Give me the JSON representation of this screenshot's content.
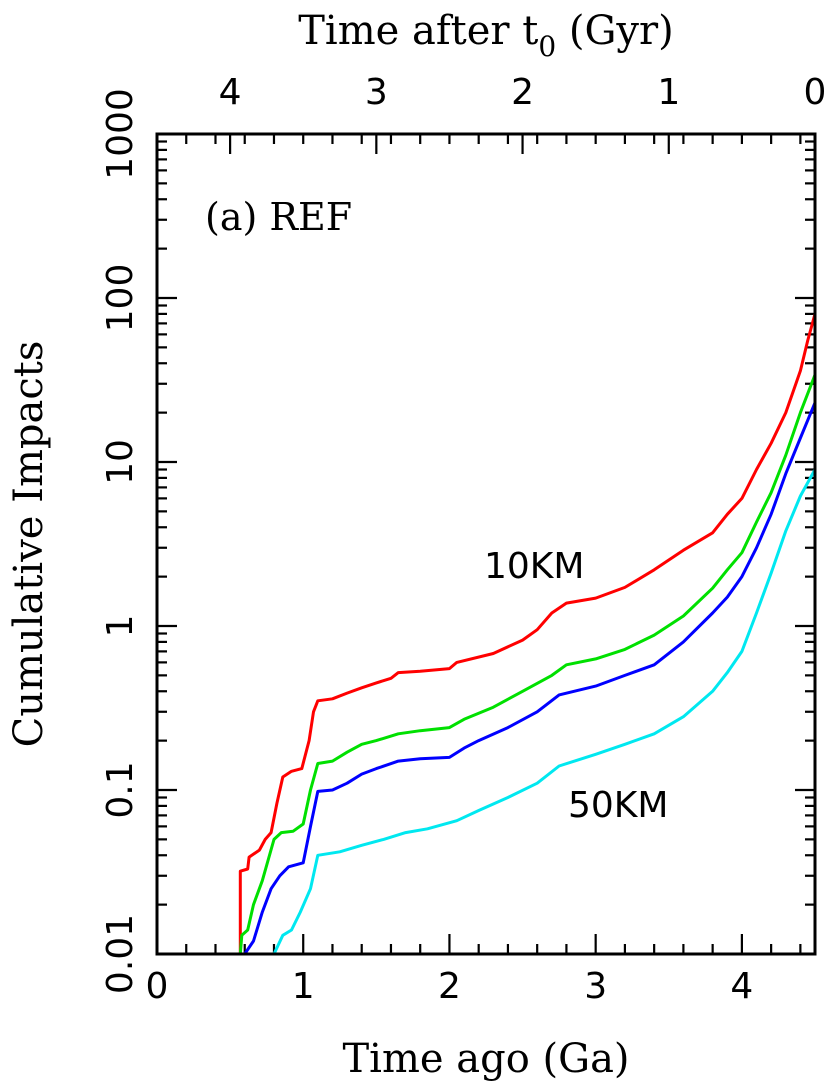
{
  "chart_data": {
    "type": "line",
    "top_axis_title": "Time after t",
    "top_axis_subscript": "0",
    "top_axis_unit": " (Gyr)",
    "top_ticks": [
      "4",
      "3",
      "2",
      "1",
      "0"
    ],
    "top_tick_values": [
      4,
      3,
      2,
      1,
      0
    ],
    "xlabel": "Time ago (Ga)",
    "ylabel": "Cumulative Impacts",
    "xlim": [
      0,
      4.5
    ],
    "ylim": [
      0.01,
      1000
    ],
    "yscale": "log",
    "x_ticks": [
      "0",
      "1",
      "2",
      "3",
      "4"
    ],
    "x_tick_values": [
      0,
      1,
      2,
      3,
      4
    ],
    "y_ticks": [
      "0.01",
      "0.1",
      "1",
      "10",
      "100",
      "1000"
    ],
    "y_tick_values": [
      0.01,
      0.1,
      1,
      10,
      100,
      1000
    ],
    "panel_label": "(a) REF",
    "annotations": [
      {
        "text": "10KM",
        "x": 2.25,
        "y": 2.6
      },
      {
        "text": "50KM",
        "x": 2.85,
        "y": 0.078
      }
    ],
    "series": [
      {
        "color": "#ff0000",
        "points": [
          [
            0.57,
            0.01
          ],
          [
            0.57,
            0.032
          ],
          [
            0.62,
            0.033
          ],
          [
            0.63,
            0.039
          ],
          [
            0.7,
            0.043
          ],
          [
            0.74,
            0.05
          ],
          [
            0.78,
            0.055
          ],
          [
            0.82,
            0.083
          ],
          [
            0.86,
            0.12
          ],
          [
            0.92,
            0.13
          ],
          [
            0.99,
            0.135
          ],
          [
            1.04,
            0.2
          ],
          [
            1.07,
            0.3
          ],
          [
            1.1,
            0.35
          ],
          [
            1.2,
            0.36
          ],
          [
            1.3,
            0.39
          ],
          [
            1.4,
            0.42
          ],
          [
            1.5,
            0.45
          ],
          [
            1.6,
            0.48
          ],
          [
            1.65,
            0.52
          ],
          [
            1.8,
            0.53
          ],
          [
            2.0,
            0.55
          ],
          [
            2.05,
            0.6
          ],
          [
            2.3,
            0.68
          ],
          [
            2.5,
            0.82
          ],
          [
            2.6,
            0.95
          ],
          [
            2.7,
            1.2
          ],
          [
            2.8,
            1.38
          ],
          [
            3.0,
            1.48
          ],
          [
            3.2,
            1.72
          ],
          [
            3.4,
            2.2
          ],
          [
            3.6,
            2.9
          ],
          [
            3.8,
            3.7
          ],
          [
            3.9,
            4.8
          ],
          [
            4.0,
            6.0
          ],
          [
            4.1,
            9.0
          ],
          [
            4.2,
            13
          ],
          [
            4.3,
            20
          ],
          [
            4.4,
            36
          ],
          [
            4.45,
            55
          ],
          [
            4.5,
            80
          ]
        ]
      },
      {
        "color": "#00e000",
        "points": [
          [
            0.57,
            0.01
          ],
          [
            0.58,
            0.013
          ],
          [
            0.62,
            0.014
          ],
          [
            0.66,
            0.02
          ],
          [
            0.72,
            0.028
          ],
          [
            0.8,
            0.05
          ],
          [
            0.85,
            0.055
          ],
          [
            0.93,
            0.056
          ],
          [
            1.0,
            0.062
          ],
          [
            1.05,
            0.1
          ],
          [
            1.1,
            0.145
          ],
          [
            1.2,
            0.15
          ],
          [
            1.3,
            0.17
          ],
          [
            1.4,
            0.19
          ],
          [
            1.5,
            0.2
          ],
          [
            1.65,
            0.22
          ],
          [
            1.8,
            0.23
          ],
          [
            2.0,
            0.24
          ],
          [
            2.1,
            0.27
          ],
          [
            2.3,
            0.32
          ],
          [
            2.5,
            0.4
          ],
          [
            2.7,
            0.5
          ],
          [
            2.8,
            0.58
          ],
          [
            3.0,
            0.63
          ],
          [
            3.2,
            0.72
          ],
          [
            3.4,
            0.88
          ],
          [
            3.6,
            1.15
          ],
          [
            3.8,
            1.7
          ],
          [
            3.9,
            2.2
          ],
          [
            4.0,
            2.8
          ],
          [
            4.1,
            4.3
          ],
          [
            4.2,
            6.5
          ],
          [
            4.3,
            11
          ],
          [
            4.4,
            20
          ],
          [
            4.5,
            34
          ]
        ]
      },
      {
        "color": "#0000ff",
        "points": [
          [
            0.6,
            0.01
          ],
          [
            0.66,
            0.012
          ],
          [
            0.72,
            0.018
          ],
          [
            0.78,
            0.025
          ],
          [
            0.84,
            0.03
          ],
          [
            0.9,
            0.034
          ],
          [
            1.0,
            0.036
          ],
          [
            1.05,
            0.06
          ],
          [
            1.1,
            0.098
          ],
          [
            1.2,
            0.1
          ],
          [
            1.3,
            0.11
          ],
          [
            1.4,
            0.125
          ],
          [
            1.5,
            0.135
          ],
          [
            1.65,
            0.15
          ],
          [
            1.8,
            0.155
          ],
          [
            2.0,
            0.158
          ],
          [
            2.1,
            0.18
          ],
          [
            2.2,
            0.2
          ],
          [
            2.4,
            0.24
          ],
          [
            2.6,
            0.3
          ],
          [
            2.75,
            0.38
          ],
          [
            3.0,
            0.43
          ],
          [
            3.2,
            0.5
          ],
          [
            3.4,
            0.58
          ],
          [
            3.6,
            0.8
          ],
          [
            3.8,
            1.2
          ],
          [
            3.9,
            1.5
          ],
          [
            4.0,
            2.0
          ],
          [
            4.1,
            3.0
          ],
          [
            4.2,
            4.8
          ],
          [
            4.3,
            8.5
          ],
          [
            4.4,
            14
          ],
          [
            4.5,
            23
          ]
        ]
      },
      {
        "color": "#00e8f0",
        "points": [
          [
            0.8,
            0.01
          ],
          [
            0.86,
            0.013
          ],
          [
            0.92,
            0.014
          ],
          [
            0.98,
            0.018
          ],
          [
            1.05,
            0.025
          ],
          [
            1.1,
            0.04
          ],
          [
            1.25,
            0.042
          ],
          [
            1.4,
            0.046
          ],
          [
            1.55,
            0.05
          ],
          [
            1.7,
            0.055
          ],
          [
            1.85,
            0.058
          ],
          [
            2.05,
            0.065
          ],
          [
            2.2,
            0.075
          ],
          [
            2.4,
            0.09
          ],
          [
            2.6,
            0.11
          ],
          [
            2.75,
            0.14
          ],
          [
            3.0,
            0.165
          ],
          [
            3.2,
            0.19
          ],
          [
            3.4,
            0.22
          ],
          [
            3.6,
            0.28
          ],
          [
            3.8,
            0.4
          ],
          [
            3.9,
            0.52
          ],
          [
            4.0,
            0.7
          ],
          [
            4.1,
            1.2
          ],
          [
            4.2,
            2.1
          ],
          [
            4.3,
            3.8
          ],
          [
            4.4,
            6.2
          ],
          [
            4.5,
            9.0
          ]
        ]
      }
    ]
  }
}
